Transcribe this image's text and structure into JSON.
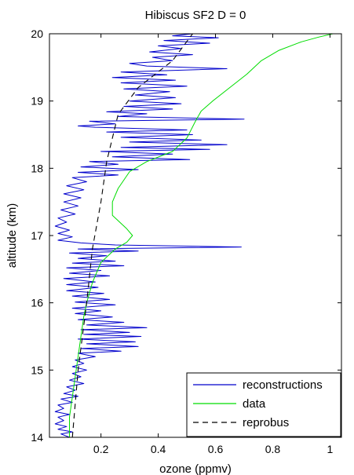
{
  "chart_data": {
    "type": "line",
    "title": "Hibiscus SF2 D = 0",
    "xlabel": "ozone (ppmv)",
    "ylabel": "altitude (km)",
    "xlim": [
      0.02,
      1.04
    ],
    "ylim": [
      14,
      20
    ],
    "xticks": [
      0.2,
      0.4,
      0.6,
      0.8,
      1
    ],
    "yticks": [
      14,
      15,
      16,
      17,
      18,
      19,
      20
    ],
    "grid": false,
    "legend": "bottom-right",
    "series": [
      {
        "name": "reconstructions",
        "color": "#0000cc",
        "points": [
          [
            0.09,
            14.0
          ],
          [
            0.06,
            14.05
          ],
          [
            0.1,
            14.08
          ],
          [
            0.05,
            14.12
          ],
          [
            0.08,
            14.16
          ],
          [
            0.04,
            14.2
          ],
          [
            0.07,
            14.25
          ],
          [
            0.05,
            14.3
          ],
          [
            0.09,
            14.34
          ],
          [
            0.04,
            14.38
          ],
          [
            0.07,
            14.43
          ],
          [
            0.05,
            14.48
          ],
          [
            0.1,
            14.52
          ],
          [
            0.06,
            14.57
          ],
          [
            0.12,
            14.61
          ],
          [
            0.07,
            14.65
          ],
          [
            0.11,
            14.7
          ],
          [
            0.08,
            14.75
          ],
          [
            0.14,
            14.8
          ],
          [
            0.09,
            14.85
          ],
          [
            0.13,
            14.9
          ],
          [
            0.1,
            14.95
          ],
          [
            0.15,
            15.0
          ],
          [
            0.1,
            15.05
          ],
          [
            0.14,
            15.1
          ],
          [
            0.11,
            15.15
          ],
          [
            0.18,
            15.2
          ],
          [
            0.12,
            15.25
          ],
          [
            0.27,
            15.28
          ],
          [
            0.13,
            15.32
          ],
          [
            0.33,
            15.35
          ],
          [
            0.15,
            15.39
          ],
          [
            0.32,
            15.42
          ],
          [
            0.12,
            15.46
          ],
          [
            0.34,
            15.5
          ],
          [
            0.14,
            15.53
          ],
          [
            0.3,
            15.56
          ],
          [
            0.13,
            15.6
          ],
          [
            0.36,
            15.63
          ],
          [
            0.15,
            15.67
          ],
          [
            0.28,
            15.71
          ],
          [
            0.12,
            15.75
          ],
          [
            0.24,
            15.79
          ],
          [
            0.11,
            15.84
          ],
          [
            0.2,
            15.88
          ],
          [
            0.1,
            15.92
          ],
          [
            0.25,
            15.97
          ],
          [
            0.11,
            16.01
          ],
          [
            0.23,
            16.05
          ],
          [
            0.1,
            16.1
          ],
          [
            0.21,
            16.14
          ],
          [
            0.08,
            16.18
          ],
          [
            0.19,
            16.23
          ],
          [
            0.08,
            16.27
          ],
          [
            0.18,
            16.31
          ],
          [
            0.07,
            16.36
          ],
          [
            0.23,
            16.4
          ],
          [
            0.09,
            16.44
          ],
          [
            0.2,
            16.48
          ],
          [
            0.08,
            16.52
          ],
          [
            0.28,
            16.55
          ],
          [
            0.1,
            16.59
          ],
          [
            0.25,
            16.62
          ],
          [
            0.12,
            16.66
          ],
          [
            0.22,
            16.7
          ],
          [
            0.09,
            16.74
          ],
          [
            0.33,
            16.77
          ],
          [
            0.12,
            16.8
          ],
          [
            0.69,
            16.83
          ],
          [
            0.25,
            16.86
          ],
          [
            0.13,
            16.89
          ],
          [
            0.05,
            16.93
          ],
          [
            0.1,
            16.98
          ],
          [
            0.05,
            17.03
          ],
          [
            0.09,
            17.08
          ],
          [
            0.04,
            17.14
          ],
          [
            0.08,
            17.2
          ],
          [
            0.05,
            17.26
          ],
          [
            0.11,
            17.32
          ],
          [
            0.06,
            17.38
          ],
          [
            0.12,
            17.44
          ],
          [
            0.07,
            17.5
          ],
          [
            0.13,
            17.56
          ],
          [
            0.07,
            17.62
          ],
          [
            0.14,
            17.68
          ],
          [
            0.08,
            17.74
          ],
          [
            0.15,
            17.8
          ],
          [
            0.1,
            17.86
          ],
          [
            0.26,
            17.9
          ],
          [
            0.12,
            17.94
          ],
          [
            0.33,
            17.98
          ],
          [
            0.13,
            18.02
          ],
          [
            0.26,
            18.06
          ],
          [
            0.16,
            18.1
          ],
          [
            0.51,
            18.13
          ],
          [
            0.24,
            18.17
          ],
          [
            0.45,
            18.21
          ],
          [
            0.2,
            18.25
          ],
          [
            0.58,
            18.28
          ],
          [
            0.27,
            18.31
          ],
          [
            0.64,
            18.35
          ],
          [
            0.3,
            18.39
          ],
          [
            0.55,
            18.42
          ],
          [
            0.27,
            18.46
          ],
          [
            0.52,
            18.5
          ],
          [
            0.22,
            18.54
          ],
          [
            0.5,
            18.57
          ],
          [
            0.18,
            18.61
          ],
          [
            0.12,
            18.63
          ],
          [
            0.25,
            18.66
          ],
          [
            0.16,
            18.7
          ],
          [
            0.7,
            18.73
          ],
          [
            0.26,
            18.77
          ],
          [
            0.36,
            18.81
          ],
          [
            0.22,
            18.84
          ],
          [
            0.45,
            18.88
          ],
          [
            0.28,
            18.92
          ],
          [
            0.48,
            18.96
          ],
          [
            0.3,
            19.0
          ],
          [
            0.46,
            19.05
          ],
          [
            0.32,
            19.09
          ],
          [
            0.44,
            19.14
          ],
          [
            0.28,
            19.18
          ],
          [
            0.5,
            19.22
          ],
          [
            0.27,
            19.27
          ],
          [
            0.46,
            19.31
          ],
          [
            0.24,
            19.35
          ],
          [
            0.43,
            19.39
          ],
          [
            0.27,
            19.43
          ],
          [
            0.64,
            19.48
          ],
          [
            0.36,
            19.52
          ],
          [
            0.3,
            19.56
          ],
          [
            0.45,
            19.6
          ],
          [
            0.38,
            19.65
          ],
          [
            0.52,
            19.69
          ],
          [
            0.37,
            19.73
          ],
          [
            0.48,
            19.78
          ],
          [
            0.4,
            19.82
          ],
          [
            0.58,
            19.86
          ],
          [
            0.42,
            19.9
          ],
          [
            0.61,
            19.94
          ],
          [
            0.45,
            19.97
          ],
          [
            0.52,
            20.0
          ]
        ]
      },
      {
        "name": "data",
        "color": "#00dd00",
        "points": [
          [
            0.09,
            14.0
          ],
          [
            0.09,
            14.3
          ],
          [
            0.1,
            14.6
          ],
          [
            0.11,
            14.9
          ],
          [
            0.12,
            15.2
          ],
          [
            0.13,
            15.5
          ],
          [
            0.14,
            15.8
          ],
          [
            0.15,
            16.0
          ],
          [
            0.17,
            16.3
          ],
          [
            0.2,
            16.6
          ],
          [
            0.25,
            16.8
          ],
          [
            0.29,
            16.9
          ],
          [
            0.31,
            17.0
          ],
          [
            0.29,
            17.1
          ],
          [
            0.24,
            17.3
          ],
          [
            0.24,
            17.5
          ],
          [
            0.26,
            17.7
          ],
          [
            0.3,
            17.95
          ],
          [
            0.36,
            18.1
          ],
          [
            0.45,
            18.25
          ],
          [
            0.5,
            18.45
          ],
          [
            0.53,
            18.7
          ],
          [
            0.55,
            18.85
          ],
          [
            0.59,
            19.0
          ],
          [
            0.65,
            19.2
          ],
          [
            0.71,
            19.4
          ],
          [
            0.76,
            19.6
          ],
          [
            0.82,
            19.75
          ],
          [
            0.9,
            19.88
          ],
          [
            0.96,
            19.95
          ],
          [
            1.01,
            20.0
          ]
        ]
      },
      {
        "name": "reprobus",
        "color": "#000000",
        "dashed": true,
        "points": [
          [
            0.1,
            14.0
          ],
          [
            0.12,
            15.0
          ],
          [
            0.15,
            16.0
          ],
          [
            0.17,
            16.8
          ],
          [
            0.2,
            17.5
          ],
          [
            0.22,
            18.1
          ],
          [
            0.26,
            18.8
          ],
          [
            0.33,
            19.2
          ],
          [
            0.45,
            19.6
          ],
          [
            0.52,
            20.0
          ]
        ]
      }
    ]
  }
}
